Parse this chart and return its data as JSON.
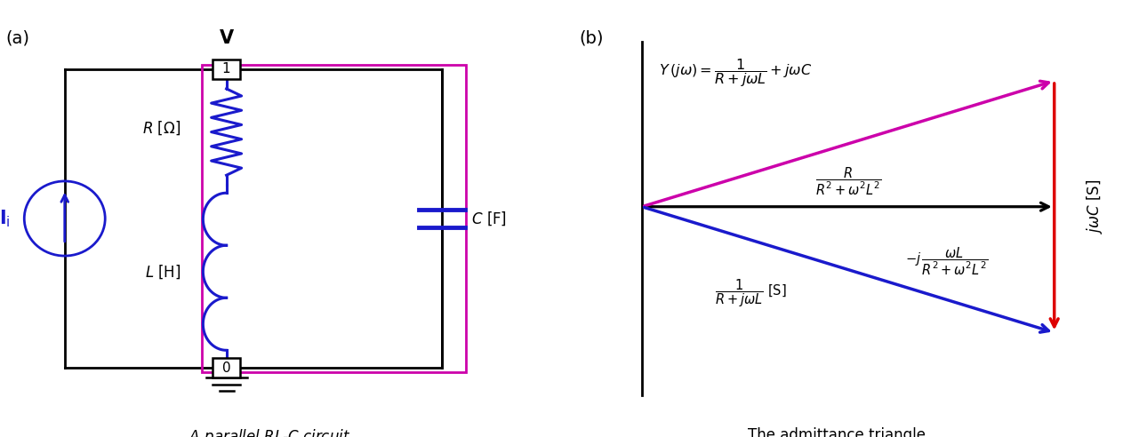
{
  "fig_width": 12.63,
  "fig_height": 4.92,
  "black": "#000000",
  "magenta": "#cc00aa",
  "blue": "#1a1acc",
  "red": "#dd0000",
  "dark_blue": "#1a1acc",
  "caption_a": "A parallel $RL$-$C$ circuit",
  "caption_b": "The admittance triangle",
  "panel_a_label": "(a)",
  "panel_b_label": "(b)"
}
